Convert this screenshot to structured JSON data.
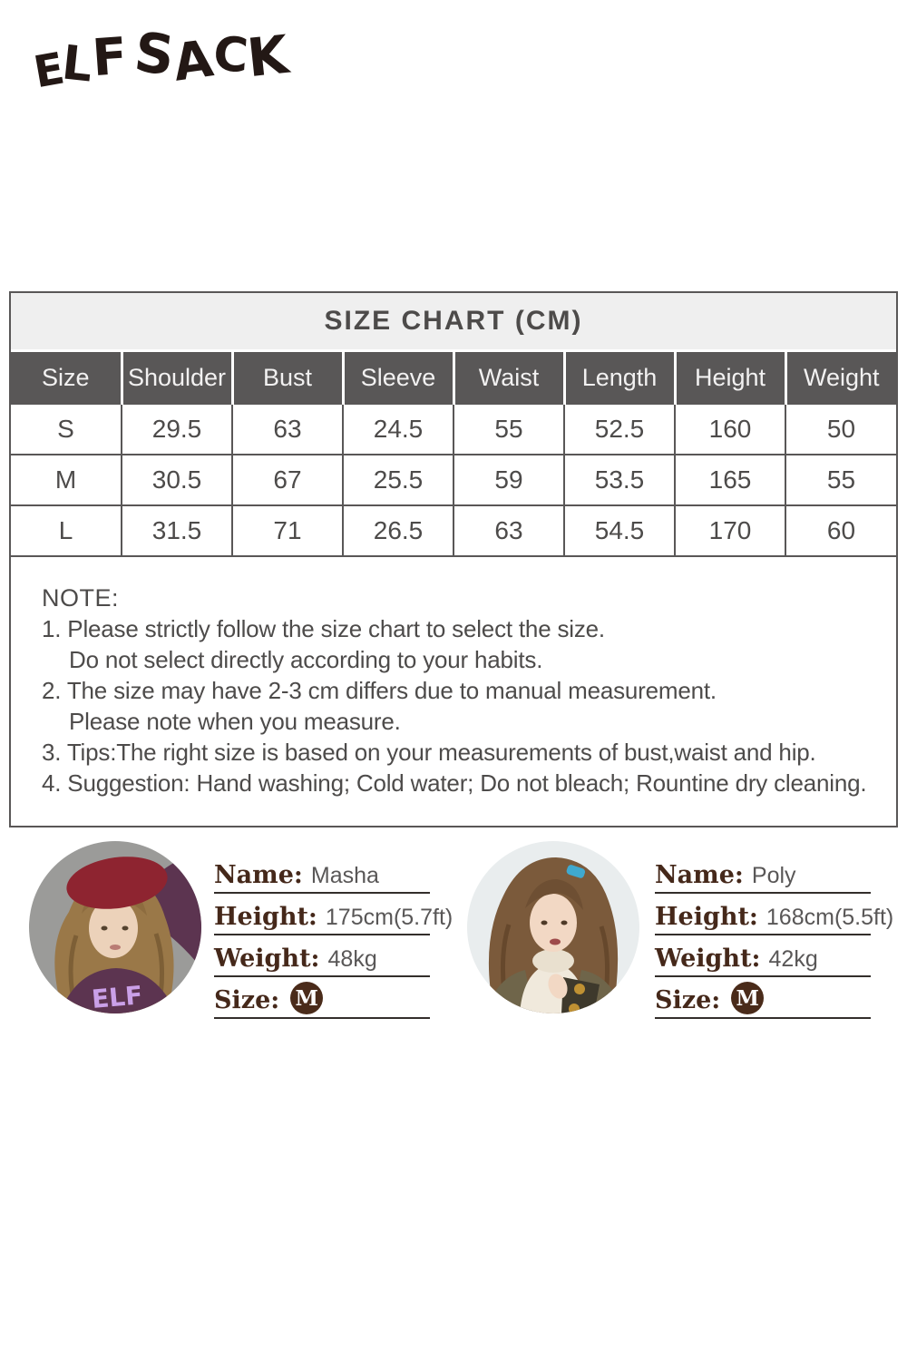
{
  "brand": {
    "name": "ELF SACK",
    "letters": [
      "E",
      "L",
      "F",
      " ",
      "S",
      "A",
      "C",
      "K"
    ],
    "color": "#231815"
  },
  "size_chart": {
    "title": "SIZE CHART (CM)",
    "columns": [
      "Size",
      "Shoulder",
      "Bust",
      "Sleeve",
      "Waist",
      "Length",
      "Height",
      "Weight"
    ],
    "rows": [
      [
        "S",
        "29.5",
        "63",
        "24.5",
        "55",
        "52.5",
        "160",
        "50"
      ],
      [
        "M",
        "30.5",
        "67",
        "25.5",
        "59",
        "53.5",
        "165",
        "55"
      ],
      [
        "L",
        "31.5",
        "71",
        "26.5",
        "63",
        "54.5",
        "170",
        "60"
      ]
    ]
  },
  "note": {
    "heading": "NOTE:",
    "lines": [
      {
        "text": "1. Please strictly follow the size chart to select the size.",
        "indent": false
      },
      {
        "text": "Do not select directly according to your habits.",
        "indent": true
      },
      {
        "text": "2. The size may have 2-3 cm differs due to manual measurement.",
        "indent": false
      },
      {
        "text": "Please note when you measure.",
        "indent": true
      },
      {
        "text": "3. Tips:The right size is based on your measurements of bust,waist and hip.",
        "indent": false
      },
      {
        "text": "4. Suggestion: Hand washing; Cold water; Do not bleach; Rountine dry cleaning.",
        "indent": false
      }
    ]
  },
  "models": [
    {
      "photo": "masha-portrait",
      "name_label": "Name:",
      "name_value": "Masha",
      "height_label": "Height:",
      "height_value": "175cm(5.7ft)",
      "weight_label": "Weight:",
      "weight_value": "48kg",
      "size_label": "Size:",
      "size_value": "M"
    },
    {
      "photo": "poly-portrait",
      "name_label": "Name:",
      "name_value": "Poly",
      "height_label": "Height:",
      "height_value": "168cm(5.5ft)",
      "weight_label": "Weight:",
      "weight_value": "42kg",
      "size_label": "Size:",
      "size_value": "M"
    }
  ],
  "colors": {
    "table_header_bg": "#595757",
    "table_header_text": "#f2f1f1",
    "title_bar_bg": "#efefef",
    "table_border": "#595757",
    "body_text": "#4d4b4a",
    "label_brown": "#45281a",
    "badge_bg": "#4a2b1a",
    "badge_text": "#ffffff"
  }
}
